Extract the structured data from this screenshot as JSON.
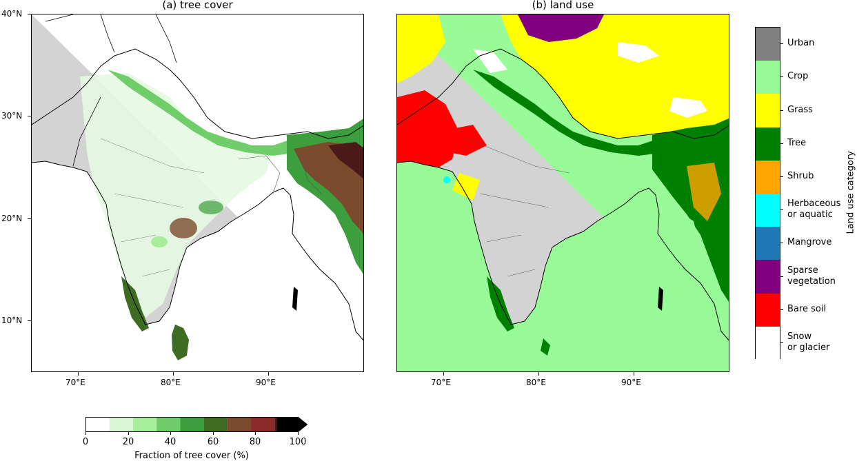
{
  "panel_a": {
    "title": "(a) tree cover",
    "y_ticks": [
      "40°N",
      "30°N",
      "20°N",
      "10°N"
    ],
    "x_ticks": [
      "70°E",
      "80°E",
      "90°E"
    ]
  },
  "panel_b": {
    "title": "(b) land use",
    "x_ticks": [
      "70°E",
      "80°E",
      "90°E"
    ]
  },
  "tree_cover_colorbar": {
    "label": "Fraction of tree cover (%)",
    "ticks": [
      "0",
      "20",
      "40",
      "60",
      "80",
      "100"
    ],
    "colors": [
      "#ffffff",
      "#d9f7d4",
      "#a6ee9a",
      "#6fce6a",
      "#3c9e3c",
      "#3e6b22",
      "#7b4a2c",
      "#8c2a2a",
      "#4a1a1a",
      "#000000"
    ]
  },
  "land_use_colorbar": {
    "label": "Land use category",
    "categories": [
      {
        "label": "Urban",
        "color": "#808080"
      },
      {
        "label": "Crop",
        "color": "#98fb98"
      },
      {
        "label": "Grass",
        "color": "#ffff00"
      },
      {
        "label": "Tree",
        "color": "#008000"
      },
      {
        "label": "Shrub",
        "color": "#ffa500"
      },
      {
        "label": "Herbaceous or aquatic",
        "line1": "Herbaceous",
        "line2": "or aquatic",
        "color": "#00ffff"
      },
      {
        "label": "Mangrove",
        "color": "#1f77b4"
      },
      {
        "label": "Sparse vegetation",
        "line1": "Sparse",
        "line2": "vegetation",
        "color": "#800080"
      },
      {
        "label": "Bare soil",
        "color": "#ff0000"
      },
      {
        "label": "Snow or glacier",
        "line1": "Snow",
        "line2": "or glacier",
        "color": "#ffffff"
      }
    ]
  },
  "colors": {
    "ocean": "#d3d3d3",
    "border": "#000000"
  }
}
